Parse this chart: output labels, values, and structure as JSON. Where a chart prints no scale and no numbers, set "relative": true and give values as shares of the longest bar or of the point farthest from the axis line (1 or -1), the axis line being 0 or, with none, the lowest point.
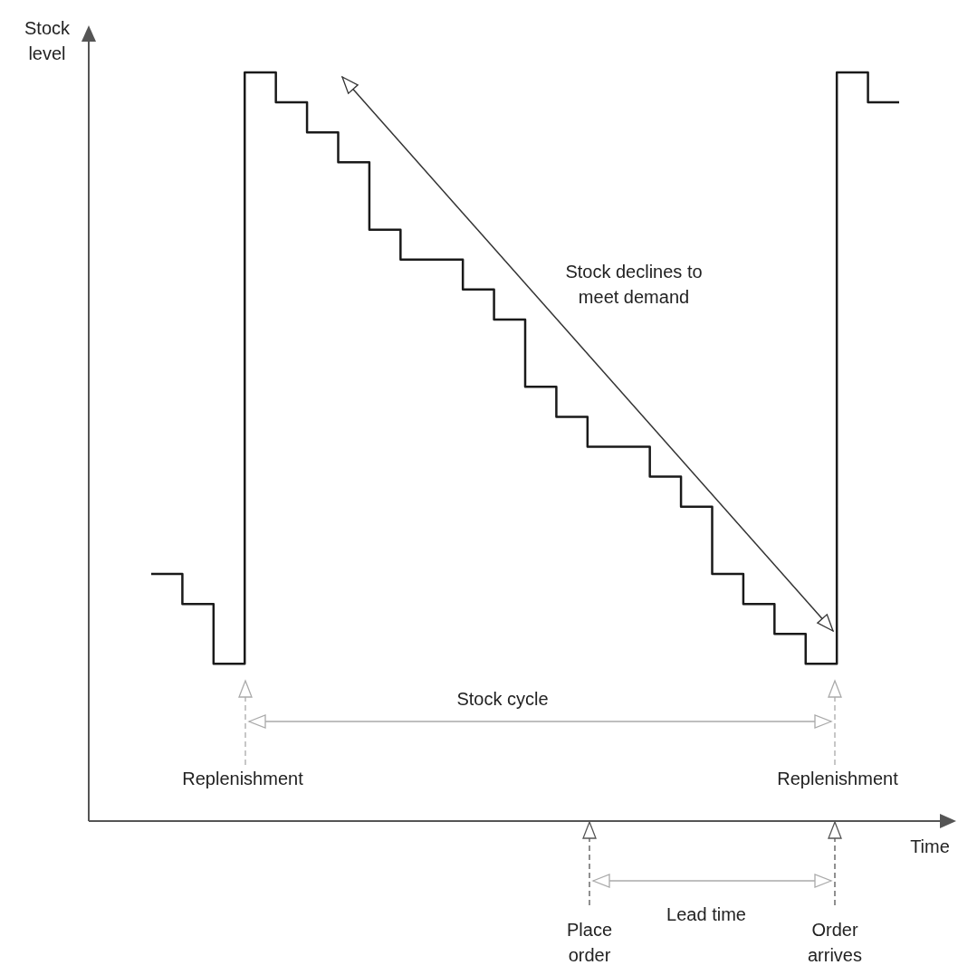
{
  "chart_data": {
    "type": "step",
    "relative": true,
    "xlabel": "Time",
    "ylabel": "Stock level",
    "color": "#1a1a1a",
    "categories": [
      null,
      null,
      null,
      null,
      null,
      null,
      null,
      null,
      null,
      null,
      null,
      null,
      null,
      null,
      null,
      null,
      null,
      null,
      null,
      null,
      null,
      null,
      null,
      null,
      null
    ],
    "values": [
      0.33,
      0.29,
      0.21,
      1,
      0.96,
      0.92,
      0.88,
      0.79,
      0.75,
      0.75,
      0.71,
      0.67,
      0.58,
      0.54,
      0.5,
      0.5,
      0.46,
      0.42,
      0.33,
      0.29,
      0.25,
      0.21,
      1,
      0.96,
      0.96
    ],
    "annotations": [
      "Stock declines to meet demand",
      "Stock cycle",
      "Replenishment",
      "Replenishment",
      "Place order",
      "Lead time",
      "Order arrives"
    ]
  }
}
